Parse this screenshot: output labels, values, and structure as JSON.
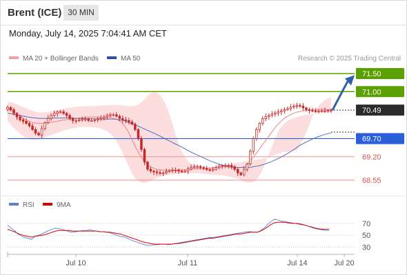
{
  "header": {
    "instrument": "Brent (ICE)",
    "timeframe": "30 MIN",
    "timestamp": "Monday, July 14, 2025 7:04:41 AM CET"
  },
  "legend": {
    "ma20_label": "MA 20 + Bollinger Bands",
    "ma50_label": "MA 50",
    "copyright": "Research © 2025 Trading Central"
  },
  "rsi_legend": {
    "rsi_label": "RSI",
    "ma9_label": "9MA"
  },
  "colors": {
    "resistance": "#5aa000",
    "support": "#2b5fd9",
    "support_line_weak": "#f08a8a",
    "support_label_weak": "#d9534f",
    "last_price": "#2b2b2b",
    "candle": "#c62828",
    "ma20": "#f08080",
    "ma50": "#4a6fbf",
    "bands": "#fbd3d3",
    "arrow": "#2f5fa8",
    "rsi": "#5b7fd6",
    "rsi_ma9": "#d90000"
  },
  "chart_data": [
    {
      "type": "candlestick",
      "title": "Brent (ICE) 30 MIN",
      "y_axis_side": "right",
      "levels": [
        {
          "value": 71.5,
          "label": "71.50",
          "kind": "resistance"
        },
        {
          "value": 71.0,
          "label": "71.00",
          "kind": "resistance"
        },
        {
          "value": 70.49,
          "label": "70.49",
          "kind": "last_price"
        },
        {
          "value": 69.7,
          "label": "69.70",
          "kind": "support"
        },
        {
          "value": 69.2,
          "label": "69.20",
          "kind": "support_weak"
        },
        {
          "value": 68.55,
          "label": "68.55",
          "kind": "support_weak"
        }
      ],
      "x_ticks": [
        "Jul 10",
        "Jul 11",
        "Jul 14",
        "Jul 20"
      ],
      "close": [
        70.56,
        70.5,
        70.4,
        70.3,
        70.22,
        70.18,
        70.12,
        70.05,
        69.95,
        69.85,
        69.8,
        69.98,
        70.14,
        70.26,
        70.34,
        70.4,
        70.44,
        70.44,
        70.4,
        70.34,
        70.26,
        70.2,
        70.2,
        70.22,
        70.24,
        70.24,
        70.2,
        70.2,
        70.22,
        70.24,
        70.26,
        70.3,
        70.34,
        70.36,
        70.36,
        70.32,
        70.26,
        70.22,
        70.2,
        70.16,
        70.1,
        69.95,
        69.7,
        69.4,
        69.05,
        68.85,
        68.8,
        68.78,
        68.76,
        68.74,
        68.75,
        68.79,
        68.82,
        68.83,
        68.83,
        68.8,
        68.78,
        68.8,
        68.86,
        68.9,
        68.93,
        68.93,
        68.9,
        68.87,
        68.84,
        68.82,
        68.85,
        68.9,
        68.94,
        68.96,
        68.96,
        68.96,
        68.92,
        68.85,
        68.75,
        68.7,
        68.85,
        69.0,
        69.35,
        69.7,
        69.95,
        70.12,
        70.25,
        70.31,
        70.34,
        70.38,
        70.41,
        70.44,
        70.47,
        70.5,
        70.53,
        70.57,
        70.6,
        70.62,
        70.6,
        70.55,
        70.5,
        70.48,
        70.47,
        70.46,
        70.46,
        70.47,
        70.47,
        70.48,
        70.49
      ],
      "ma20": [
        70.52,
        70.47,
        70.42,
        70.36,
        70.3,
        70.24,
        70.19,
        70.15,
        70.13,
        70.12,
        70.12,
        70.13,
        70.14,
        70.16,
        70.17,
        70.19,
        70.21,
        70.22,
        70.24,
        70.25,
        70.26,
        70.27,
        70.28,
        70.29,
        70.3,
        70.3,
        70.3,
        70.29,
        70.29,
        70.29,
        70.28,
        70.26,
        70.22,
        70.16,
        70.05,
        69.9,
        69.7,
        69.5,
        69.32,
        69.17,
        69.04,
        68.95,
        68.9,
        68.86,
        68.84,
        68.83,
        68.82,
        68.82,
        68.82,
        68.83,
        68.83,
        68.84,
        68.84,
        68.85,
        68.86,
        68.86,
        68.87,
        68.87,
        68.88,
        68.89,
        68.9,
        68.91,
        68.92,
        68.92,
        68.92,
        68.92,
        68.91,
        68.9,
        68.9,
        68.94,
        69.02,
        69.13,
        69.26,
        69.39,
        69.52,
        69.65,
        69.78,
        69.91,
        70.04,
        70.14,
        70.23,
        70.3,
        70.35,
        70.4,
        70.43,
        70.45,
        70.47,
        70.48,
        70.49,
        70.5,
        70.51,
        70.51,
        70.51,
        70.5,
        70.5
      ],
      "ma50": [
        70.4,
        70.38,
        70.36,
        70.34,
        70.32,
        70.3,
        70.28,
        70.27,
        70.26,
        70.26,
        70.26,
        70.26,
        70.27,
        70.27,
        70.27,
        70.27,
        70.27,
        70.26,
        70.26,
        70.26,
        70.25,
        70.25,
        70.25,
        70.25,
        70.24,
        70.24,
        70.24,
        70.24,
        70.22,
        70.2,
        70.16,
        70.12,
        70.08,
        70.03,
        69.98,
        69.93,
        69.88,
        69.83,
        69.78,
        69.72,
        69.66,
        69.61,
        69.55,
        69.5,
        69.44,
        69.38,
        69.32,
        69.27,
        69.22,
        69.17,
        69.12,
        69.07,
        69.03,
        68.99,
        68.96,
        68.93,
        68.91,
        68.9,
        68.9,
        68.9,
        68.9,
        68.91,
        68.93,
        68.95,
        68.98,
        69.02,
        69.06,
        69.11,
        69.16,
        69.22,
        69.28,
        69.35,
        69.42,
        69.5,
        69.56,
        69.62,
        69.67,
        69.72,
        69.76,
        69.8,
        69.83,
        69.86
      ],
      "bollinger_upper": [
        70.72,
        70.7,
        70.66,
        70.6,
        70.55,
        70.5,
        70.46,
        70.43,
        70.42,
        70.43,
        70.45,
        70.48,
        70.5,
        70.52,
        70.55,
        70.57,
        70.58,
        70.59,
        70.6,
        70.6,
        70.6,
        70.61,
        70.62,
        70.62,
        70.63,
        70.63,
        70.63,
        70.61,
        70.6,
        70.6,
        70.62,
        70.7,
        70.82,
        70.95,
        71.0,
        70.95,
        70.8,
        70.55,
        70.2,
        69.8,
        69.45,
        69.2,
        69.05,
        68.97,
        68.93,
        68.9,
        68.9,
        68.9,
        68.91,
        68.93,
        68.95,
        68.98,
        69.01,
        69.03,
        69.05,
        69.07,
        69.09,
        69.1,
        69.12,
        69.14,
        69.17,
        69.22,
        69.26,
        69.3,
        69.33,
        69.34,
        69.35,
        69.38,
        69.55,
        69.8,
        70.1,
        70.4,
        70.6,
        70.72,
        70.8,
        70.85,
        70.88,
        70.9,
        70.92,
        70.92,
        70.91,
        70.89,
        70.86,
        70.82,
        70.78,
        70.74,
        70.7,
        70.66,
        70.62,
        70.6,
        70.58,
        70.57
      ],
      "bollinger_lower": [
        70.18,
        70.05,
        69.93,
        69.82,
        69.73,
        69.68,
        69.66,
        69.67,
        69.7,
        69.74,
        69.79,
        69.84,
        69.88,
        69.92,
        69.95,
        69.98,
        70.0,
        70.02,
        70.02,
        70.02,
        70.01,
        69.99,
        69.96,
        69.91,
        69.82,
        69.68,
        69.48,
        69.22,
        68.95,
        68.7,
        68.55,
        68.48,
        68.48,
        68.52,
        68.58,
        68.63,
        68.66,
        68.69,
        68.71,
        68.72,
        68.73,
        68.74,
        68.74,
        68.74,
        68.74,
        68.73,
        68.72,
        68.71,
        68.7,
        68.69,
        68.68,
        68.66,
        68.63,
        68.6,
        68.56,
        68.5,
        68.48,
        68.5,
        68.6,
        68.8,
        69.1,
        69.4,
        69.7,
        69.95,
        70.1,
        70.2,
        70.26,
        70.3,
        70.33,
        70.35,
        70.37,
        70.39,
        70.41,
        70.42,
        70.43,
        70.44
      ]
    },
    {
      "type": "line",
      "title": "RSI",
      "y_ticks": [
        "70",
        "50",
        "30"
      ],
      "y_range": [
        20,
        85
      ],
      "series": [
        {
          "name": "RSI",
          "values": [
            67,
            62,
            58,
            52,
            49,
            46,
            45,
            43,
            48,
            50,
            52,
            55,
            58,
            60,
            62,
            61,
            60,
            58,
            56,
            55,
            56,
            57,
            58,
            58,
            59,
            58,
            57,
            56,
            56,
            55,
            54,
            52,
            50,
            48,
            47,
            45,
            42,
            40,
            38,
            36,
            34,
            33,
            33,
            34,
            34,
            35,
            35,
            34,
            35,
            36,
            37,
            38,
            39,
            40,
            41,
            42,
            43,
            44,
            45,
            46,
            46,
            47,
            48,
            49,
            50,
            51,
            52,
            53,
            54,
            55,
            56,
            56,
            55,
            55,
            58,
            62,
            68,
            73,
            77,
            76,
            74,
            73,
            72,
            71,
            70,
            70,
            69,
            67,
            65,
            63,
            61,
            60,
            59,
            58,
            58
          ]
        },
        {
          "name": "9MA",
          "values": [
            60,
            58,
            56,
            53,
            51,
            49,
            48,
            47,
            48,
            49,
            50,
            51,
            53,
            55,
            57,
            58,
            58,
            58,
            58,
            57,
            57,
            57,
            57,
            57,
            57,
            57,
            57,
            56,
            56,
            55,
            55,
            54,
            53,
            52,
            50,
            48,
            46,
            44,
            42,
            40,
            38,
            37,
            36,
            35,
            35,
            35,
            35,
            35,
            35,
            36,
            36,
            37,
            38,
            39,
            40,
            41,
            42,
            43,
            44,
            45,
            45,
            46,
            47,
            48,
            49,
            50,
            51,
            52,
            52,
            53,
            54,
            55,
            55,
            55,
            57,
            60,
            64,
            68,
            71,
            72,
            72,
            72,
            71,
            70,
            70,
            69,
            68,
            67,
            65,
            64,
            62,
            61,
            60,
            60,
            60
          ]
        }
      ]
    }
  ]
}
